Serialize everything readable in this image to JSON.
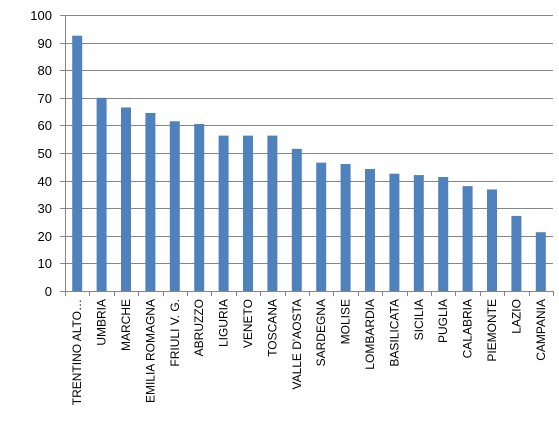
{
  "chart_data": {
    "type": "bar",
    "title": "",
    "xlabel": "",
    "ylabel": "",
    "ylim": [
      0,
      100
    ],
    "yticks": [
      0,
      10,
      20,
      30,
      40,
      50,
      60,
      70,
      80,
      90,
      100
    ],
    "grid": true,
    "legend": "none",
    "bar_color": "#4F81BD",
    "grid_color": "#868686",
    "categories": [
      "TRENTINO ALTO…",
      "UMBRIA",
      "MARCHE",
      "EMILIA ROMAGNA",
      "FRIULI V. G.",
      "ABRUZZO",
      "LIGURIA",
      "VENETO",
      "TOSCANA",
      "VALLE D'AOSTA",
      "SARDEGNA",
      "MOLISE",
      "LOMBARDIA",
      "BASILICATA",
      "SICILIA",
      "PUGLIA",
      "CALABRIA",
      "PIEMONTE",
      "LAZIO",
      "CAMPANIA"
    ],
    "values": [
      92.5,
      70,
      66.5,
      64.5,
      61.5,
      60.5,
      56.3,
      56.3,
      56.3,
      51.5,
      46.5,
      46,
      44.2,
      42.5,
      42,
      41.3,
      38,
      36.8,
      27.2,
      21.3
    ]
  }
}
